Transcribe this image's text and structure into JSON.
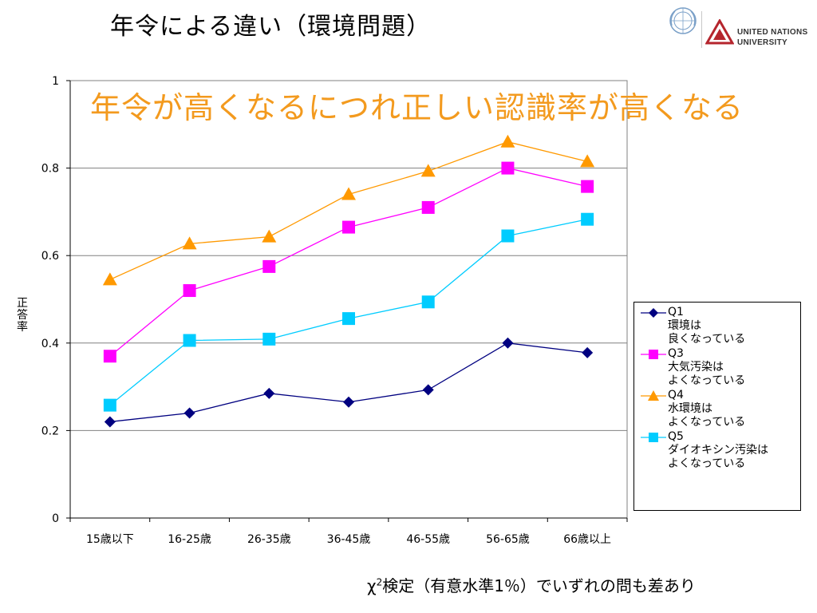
{
  "slide_title": "年令による違い（環境問題）",
  "logo": {
    "line1": "UNITED NATIONS",
    "line2": "UNIVERSITY"
  },
  "footnote": {
    "chi": "χ",
    "sup": "2",
    "rest": "検定（有意水準1％）でいずれの問も差あり"
  },
  "chart_data": {
    "type": "line",
    "title": "年令が高くなるにつれ正しい認識率が高くなる",
    "ylabel": "正答率",
    "xlabel": "",
    "categories": [
      "15歳以下",
      "16-25歳",
      "26-35歳",
      "36-45歳",
      "46-55歳",
      "56-65歳",
      "66歳以上"
    ],
    "ylim": [
      0,
      1
    ],
    "yticks": [
      "0",
      "0.2",
      "0.4",
      "0.6",
      "0.8",
      "1"
    ],
    "grid": true,
    "legend_position": "right",
    "series": [
      {
        "name": "Q1",
        "desc": [
          "環境は",
          "良くなっている"
        ],
        "color": "#000080",
        "marker": "diamond",
        "values": [
          0.22,
          0.24,
          0.285,
          0.265,
          0.293,
          0.4,
          0.378
        ]
      },
      {
        "name": "Q3",
        "desc": [
          "大気汚染は",
          "よくなっている"
        ],
        "color": "#ff00ff",
        "marker": "square",
        "values": [
          0.37,
          0.52,
          0.575,
          0.665,
          0.71,
          0.8,
          0.758
        ]
      },
      {
        "name": "Q4",
        "desc": [
          "水環境は",
          "よくなっている"
        ],
        "color": "#ff9900",
        "marker": "triangle",
        "values": [
          0.545,
          0.627,
          0.643,
          0.74,
          0.793,
          0.86,
          0.815
        ]
      },
      {
        "name": "Q5",
        "desc": [
          "ダイオキシン汚染は",
          "よくなっている"
        ],
        "color": "#00ccff",
        "marker": "square",
        "values": [
          0.258,
          0.406,
          0.409,
          0.456,
          0.494,
          0.645,
          0.683
        ]
      }
    ]
  }
}
